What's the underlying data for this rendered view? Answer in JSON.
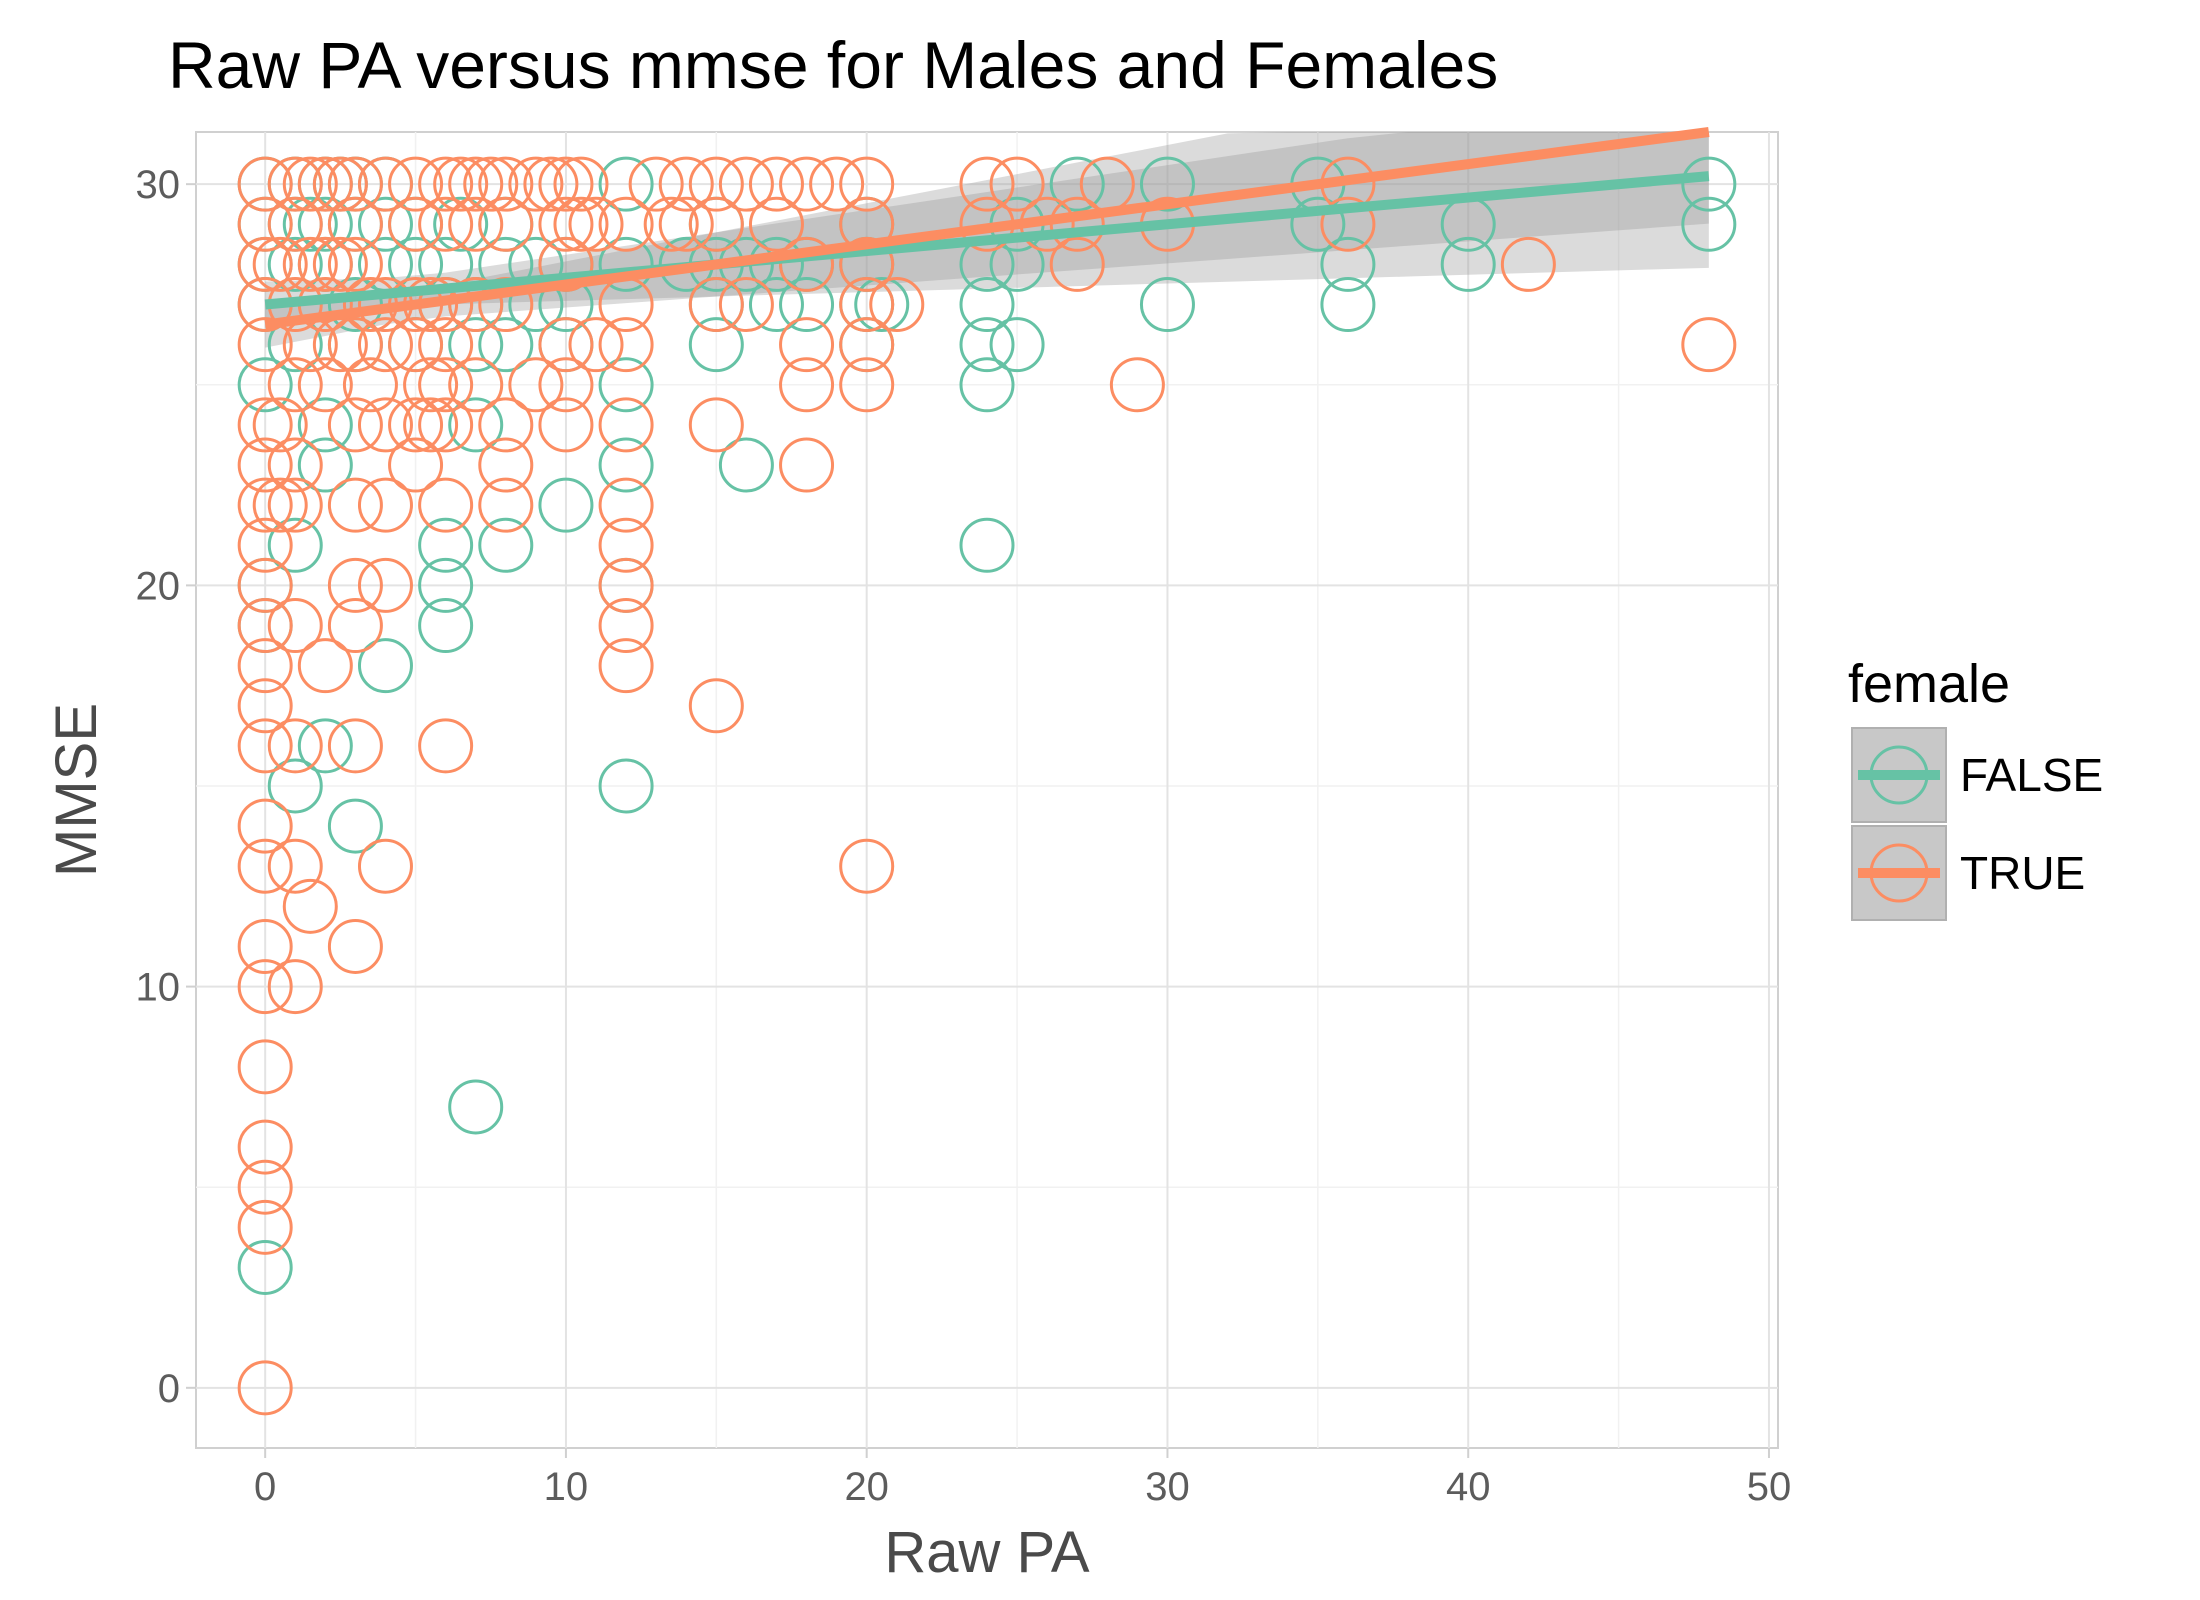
{
  "chart_data": {
    "type": "scatter",
    "title": "Raw PA versus mmse for Males and Females",
    "xlabel": "Raw PA",
    "ylabel": "MMSE",
    "xlim": [
      -2.3,
      50.3
    ],
    "ylim": [
      -1.5,
      31.3
    ],
    "xticks": [
      0,
      10,
      20,
      30,
      40,
      50
    ],
    "yticks": [
      0,
      10,
      20,
      30
    ],
    "grid": true,
    "legend": {
      "title": "female",
      "position": "right"
    },
    "series": [
      {
        "name": "FALSE",
        "color": "#66c2a5",
        "points": [
          [
            0,
            30
          ],
          [
            0,
            29
          ],
          [
            0,
            28
          ],
          [
            0,
            27
          ],
          [
            0,
            25
          ],
          [
            0,
            20
          ],
          [
            0,
            19
          ],
          [
            0,
            3
          ],
          [
            1,
            30
          ],
          [
            1,
            29
          ],
          [
            1,
            28
          ],
          [
            1,
            26
          ],
          [
            1,
            21
          ],
          [
            1,
            15
          ],
          [
            1.5,
            29
          ],
          [
            2,
            30
          ],
          [
            2,
            29
          ],
          [
            2,
            28
          ],
          [
            2,
            24
          ],
          [
            2,
            23
          ],
          [
            2,
            16
          ],
          [
            2.5,
            30
          ],
          [
            3,
            30
          ],
          [
            3,
            29
          ],
          [
            3,
            27
          ],
          [
            3,
            26
          ],
          [
            3,
            14
          ],
          [
            4,
            30
          ],
          [
            4,
            29
          ],
          [
            4,
            28
          ],
          [
            4,
            18
          ],
          [
            5,
            29
          ],
          [
            5,
            28
          ],
          [
            5,
            26
          ],
          [
            6,
            28
          ],
          [
            6,
            27
          ],
          [
            6,
            21
          ],
          [
            6,
            20
          ],
          [
            6,
            19
          ],
          [
            6.5,
            29
          ],
          [
            7,
            27
          ],
          [
            7,
            26
          ],
          [
            7,
            24
          ],
          [
            7,
            7
          ],
          [
            8,
            29
          ],
          [
            8,
            28
          ],
          [
            8,
            26
          ],
          [
            8,
            21
          ],
          [
            9,
            28
          ],
          [
            9,
            27
          ],
          [
            10,
            28
          ],
          [
            10,
            27
          ],
          [
            10,
            26
          ],
          [
            10,
            22
          ],
          [
            12,
            30
          ],
          [
            12,
            28
          ],
          [
            12,
            25
          ],
          [
            12,
            23
          ],
          [
            12,
            20
          ],
          [
            12,
            15
          ],
          [
            14,
            28
          ],
          [
            15,
            29
          ],
          [
            15,
            28
          ],
          [
            15,
            27
          ],
          [
            15,
            26
          ],
          [
            16,
            28
          ],
          [
            16,
            23
          ],
          [
            17,
            28
          ],
          [
            17,
            27
          ],
          [
            18,
            28
          ],
          [
            18,
            27
          ],
          [
            20,
            29
          ],
          [
            20,
            28
          ],
          [
            20,
            27
          ],
          [
            20,
            26
          ],
          [
            20.5,
            27
          ],
          [
            24,
            28
          ],
          [
            24,
            27
          ],
          [
            24,
            26
          ],
          [
            24,
            25
          ],
          [
            24,
            21
          ],
          [
            25,
            29
          ],
          [
            25,
            28
          ],
          [
            25,
            26
          ],
          [
            27,
            30
          ],
          [
            30,
            30
          ],
          [
            30,
            27
          ],
          [
            35,
            30
          ],
          [
            35,
            29
          ],
          [
            36,
            28
          ],
          [
            36,
            27
          ],
          [
            40,
            29
          ],
          [
            40,
            28
          ],
          [
            48,
            30
          ],
          [
            48,
            29
          ]
        ]
      },
      {
        "name": "TRUE",
        "color": "#fc8d62",
        "points": [
          [
            0,
            30
          ],
          [
            0,
            29
          ],
          [
            0,
            28
          ],
          [
            0,
            27
          ],
          [
            0,
            26
          ],
          [
            0,
            24
          ],
          [
            0,
            23
          ],
          [
            0,
            22
          ],
          [
            0,
            21
          ],
          [
            0,
            20
          ],
          [
            0,
            19
          ],
          [
            0,
            18
          ],
          [
            0,
            17
          ],
          [
            0,
            16
          ],
          [
            0,
            14
          ],
          [
            0,
            13
          ],
          [
            0,
            11
          ],
          [
            0,
            10
          ],
          [
            0,
            8
          ],
          [
            0,
            6
          ],
          [
            0,
            5
          ],
          [
            0,
            4
          ],
          [
            0,
            0
          ],
          [
            0.5,
            28
          ],
          [
            0.5,
            24
          ],
          [
            0.5,
            22
          ],
          [
            1,
            30
          ],
          [
            1,
            29
          ],
          [
            1,
            27
          ],
          [
            1,
            25
          ],
          [
            1,
            23
          ],
          [
            1,
            22
          ],
          [
            1,
            19
          ],
          [
            1,
            16
          ],
          [
            1,
            13
          ],
          [
            1,
            10
          ],
          [
            1.5,
            30
          ],
          [
            1.5,
            28
          ],
          [
            1.5,
            26
          ],
          [
            1.5,
            12
          ],
          [
            2,
            30
          ],
          [
            2,
            28
          ],
          [
            2,
            27
          ],
          [
            2,
            25
          ],
          [
            2,
            18
          ],
          [
            2.5,
            30
          ],
          [
            2.5,
            28
          ],
          [
            2.5,
            26
          ],
          [
            3,
            30
          ],
          [
            3,
            29
          ],
          [
            3,
            28
          ],
          [
            3,
            26
          ],
          [
            3,
            24
          ],
          [
            3,
            22
          ],
          [
            3,
            20
          ],
          [
            3,
            19
          ],
          [
            3,
            16
          ],
          [
            3,
            11
          ],
          [
            3.5,
            27
          ],
          [
            3.5,
            25
          ],
          [
            4,
            30
          ],
          [
            4,
            27
          ],
          [
            4,
            26
          ],
          [
            4,
            24
          ],
          [
            4,
            22
          ],
          [
            4,
            20
          ],
          [
            4,
            13
          ],
          [
            5,
            30
          ],
          [
            5,
            29
          ],
          [
            5,
            27
          ],
          [
            5,
            26
          ],
          [
            5,
            24
          ],
          [
            5,
            23
          ],
          [
            5.5,
            27
          ],
          [
            5.5,
            25
          ],
          [
            5.5,
            24
          ],
          [
            6,
            30
          ],
          [
            6,
            29
          ],
          [
            6,
            27
          ],
          [
            6,
            26
          ],
          [
            6,
            25
          ],
          [
            6,
            24
          ],
          [
            6,
            22
          ],
          [
            6,
            16
          ],
          [
            6.5,
            30
          ],
          [
            7,
            30
          ],
          [
            7,
            29
          ],
          [
            7,
            27
          ],
          [
            7,
            25
          ],
          [
            7.5,
            30
          ],
          [
            8,
            30
          ],
          [
            8,
            29
          ],
          [
            8,
            27
          ],
          [
            8,
            24
          ],
          [
            8,
            23
          ],
          [
            8,
            22
          ],
          [
            9,
            30
          ],
          [
            9,
            25
          ],
          [
            9.5,
            30
          ],
          [
            10,
            30
          ],
          [
            10,
            29
          ],
          [
            10,
            28
          ],
          [
            10,
            26
          ],
          [
            10,
            25
          ],
          [
            10,
            24
          ],
          [
            10.5,
            30
          ],
          [
            10.5,
            29
          ],
          [
            11,
            29
          ],
          [
            11,
            26
          ],
          [
            12,
            29
          ],
          [
            12,
            27
          ],
          [
            12,
            26
          ],
          [
            12,
            24
          ],
          [
            12,
            22
          ],
          [
            12,
            21
          ],
          [
            12,
            20
          ],
          [
            12,
            19
          ],
          [
            12,
            18
          ],
          [
            13,
            30
          ],
          [
            13.5,
            29
          ],
          [
            14,
            30
          ],
          [
            14,
            29
          ],
          [
            15,
            30
          ],
          [
            15,
            29
          ],
          [
            15,
            27
          ],
          [
            15,
            24
          ],
          [
            15,
            17
          ],
          [
            16,
            30
          ],
          [
            16,
            27
          ],
          [
            17,
            30
          ],
          [
            17,
            29
          ],
          [
            18,
            30
          ],
          [
            18,
            28
          ],
          [
            18,
            26
          ],
          [
            18,
            25
          ],
          [
            18,
            23
          ],
          [
            19,
            30
          ],
          [
            20,
            30
          ],
          [
            20,
            29
          ],
          [
            20,
            28
          ],
          [
            20,
            27
          ],
          [
            20,
            26
          ],
          [
            20,
            25
          ],
          [
            20,
            13
          ],
          [
            21,
            27
          ],
          [
            24,
            30
          ],
          [
            24,
            29
          ],
          [
            25,
            30
          ],
          [
            26,
            29
          ],
          [
            27,
            29
          ],
          [
            27,
            28
          ],
          [
            28,
            30
          ],
          [
            29,
            25
          ],
          [
            30,
            29
          ],
          [
            36,
            30
          ],
          [
            36,
            29
          ],
          [
            42,
            28
          ],
          [
            48,
            26
          ]
        ]
      }
    ],
    "fits": [
      {
        "name": "FALSE",
        "color": "#66c2a5",
        "x": [
          0,
          48
        ],
        "y": [
          27.0,
          30.2
        ]
      },
      {
        "name": "TRUE",
        "color": "#fc8d62",
        "x": [
          0,
          48
        ],
        "y": [
          26.5,
          31.3
        ]
      }
    ]
  }
}
